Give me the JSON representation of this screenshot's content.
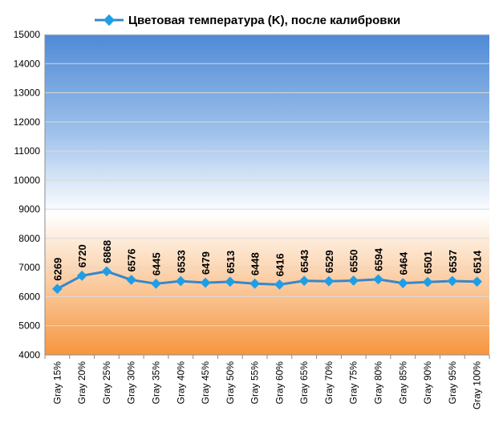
{
  "chart_data": {
    "type": "line",
    "title": "",
    "xlabel": "",
    "ylabel": "",
    "ylim": [
      4000,
      15000
    ],
    "yticks": [
      4000,
      5000,
      6000,
      7000,
      8000,
      9000,
      10000,
      11000,
      12000,
      13000,
      14000,
      15000
    ],
    "grid": true,
    "legend_position": "top",
    "categories": [
      "Gray 15%",
      "Gray 20%",
      "Gray 25%",
      "Gray 30%",
      "Gray 35%",
      "Gray 40%",
      "Gray 45%",
      "Gray 50%",
      "Gray 55%",
      "Gray 60%",
      "Gray 65%",
      "Gray 70%",
      "Gray 75%",
      "Gray 80%",
      "Gray 85%",
      "Gray 90%",
      "Gray 95%",
      "Gray 100%"
    ],
    "series": [
      {
        "name": "Цветовая температура (K), после калибровки",
        "color": "#3a86c8",
        "values": [
          6269,
          6720,
          6868,
          6576,
          6445,
          6533,
          6479,
          6513,
          6448,
          6416,
          6543,
          6529,
          6550,
          6594,
          6464,
          6501,
          6537,
          6514
        ]
      }
    ],
    "background_gradient": {
      "top": "#4f8ad6",
      "middle": "#ffffff",
      "bottom": "#f79a46"
    }
  }
}
